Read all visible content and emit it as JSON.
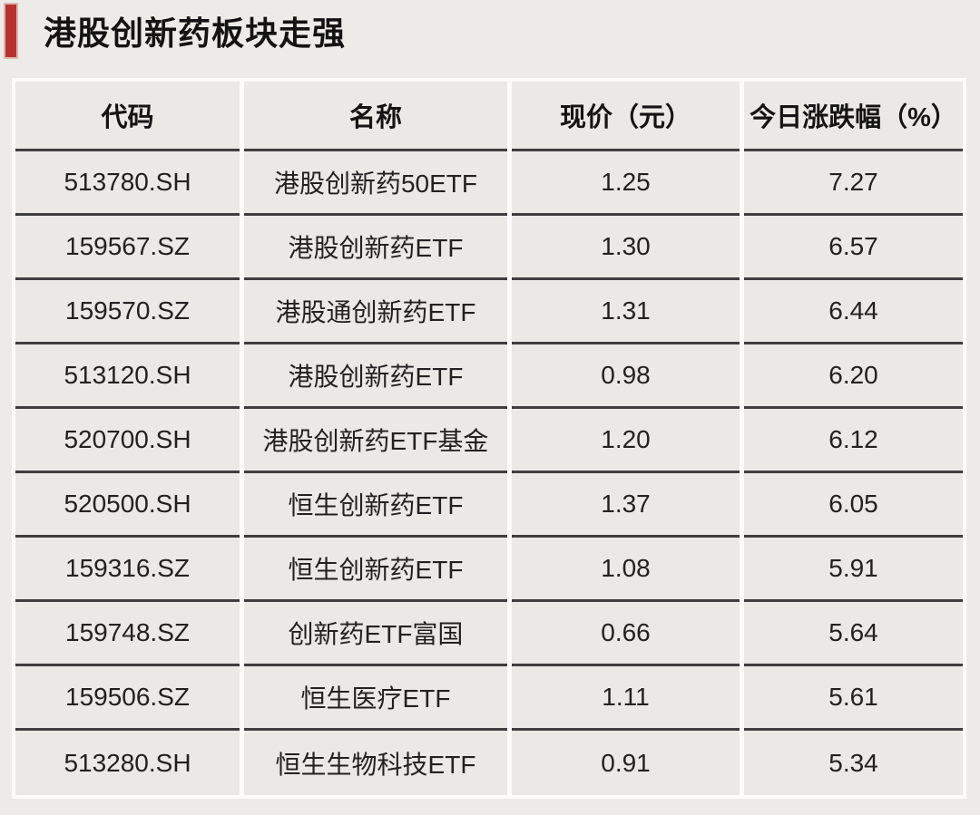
{
  "title": "港股创新药板块走强",
  "accent_color": "#b4332f",
  "table_border_dark": "#3e3e3e",
  "table_gridline_light": "#fcfbf9",
  "chart_data": {
    "type": "table",
    "title": "港股创新药板块走强",
    "columns": [
      "代码",
      "名称",
      "现价（元）",
      "今日涨跌幅（%）"
    ],
    "rows": [
      [
        "513780.SH",
        "港股创新药50ETF",
        "1.25",
        "7.27"
      ],
      [
        "159567.SZ",
        "港股创新药ETF",
        "1.30",
        "6.57"
      ],
      [
        "159570.SZ",
        "港股通创新药ETF",
        "1.31",
        "6.44"
      ],
      [
        "513120.SH",
        "港股创新药ETF",
        "0.98",
        "6.20"
      ],
      [
        "520700.SH",
        "港股创新药ETF基金",
        "1.20",
        "6.12"
      ],
      [
        "520500.SH",
        "恒生创新药ETF",
        "1.37",
        "6.05"
      ],
      [
        "159316.SZ",
        "恒生创新药ETF",
        "1.08",
        "5.91"
      ],
      [
        "159748.SZ",
        "创新药ETF富国",
        "0.66",
        "5.64"
      ],
      [
        "159506.SZ",
        "恒生医疗ETF",
        "1.11",
        "5.61"
      ],
      [
        "513280.SH",
        "恒生生物科技ETF",
        "0.91",
        "5.34"
      ]
    ]
  }
}
